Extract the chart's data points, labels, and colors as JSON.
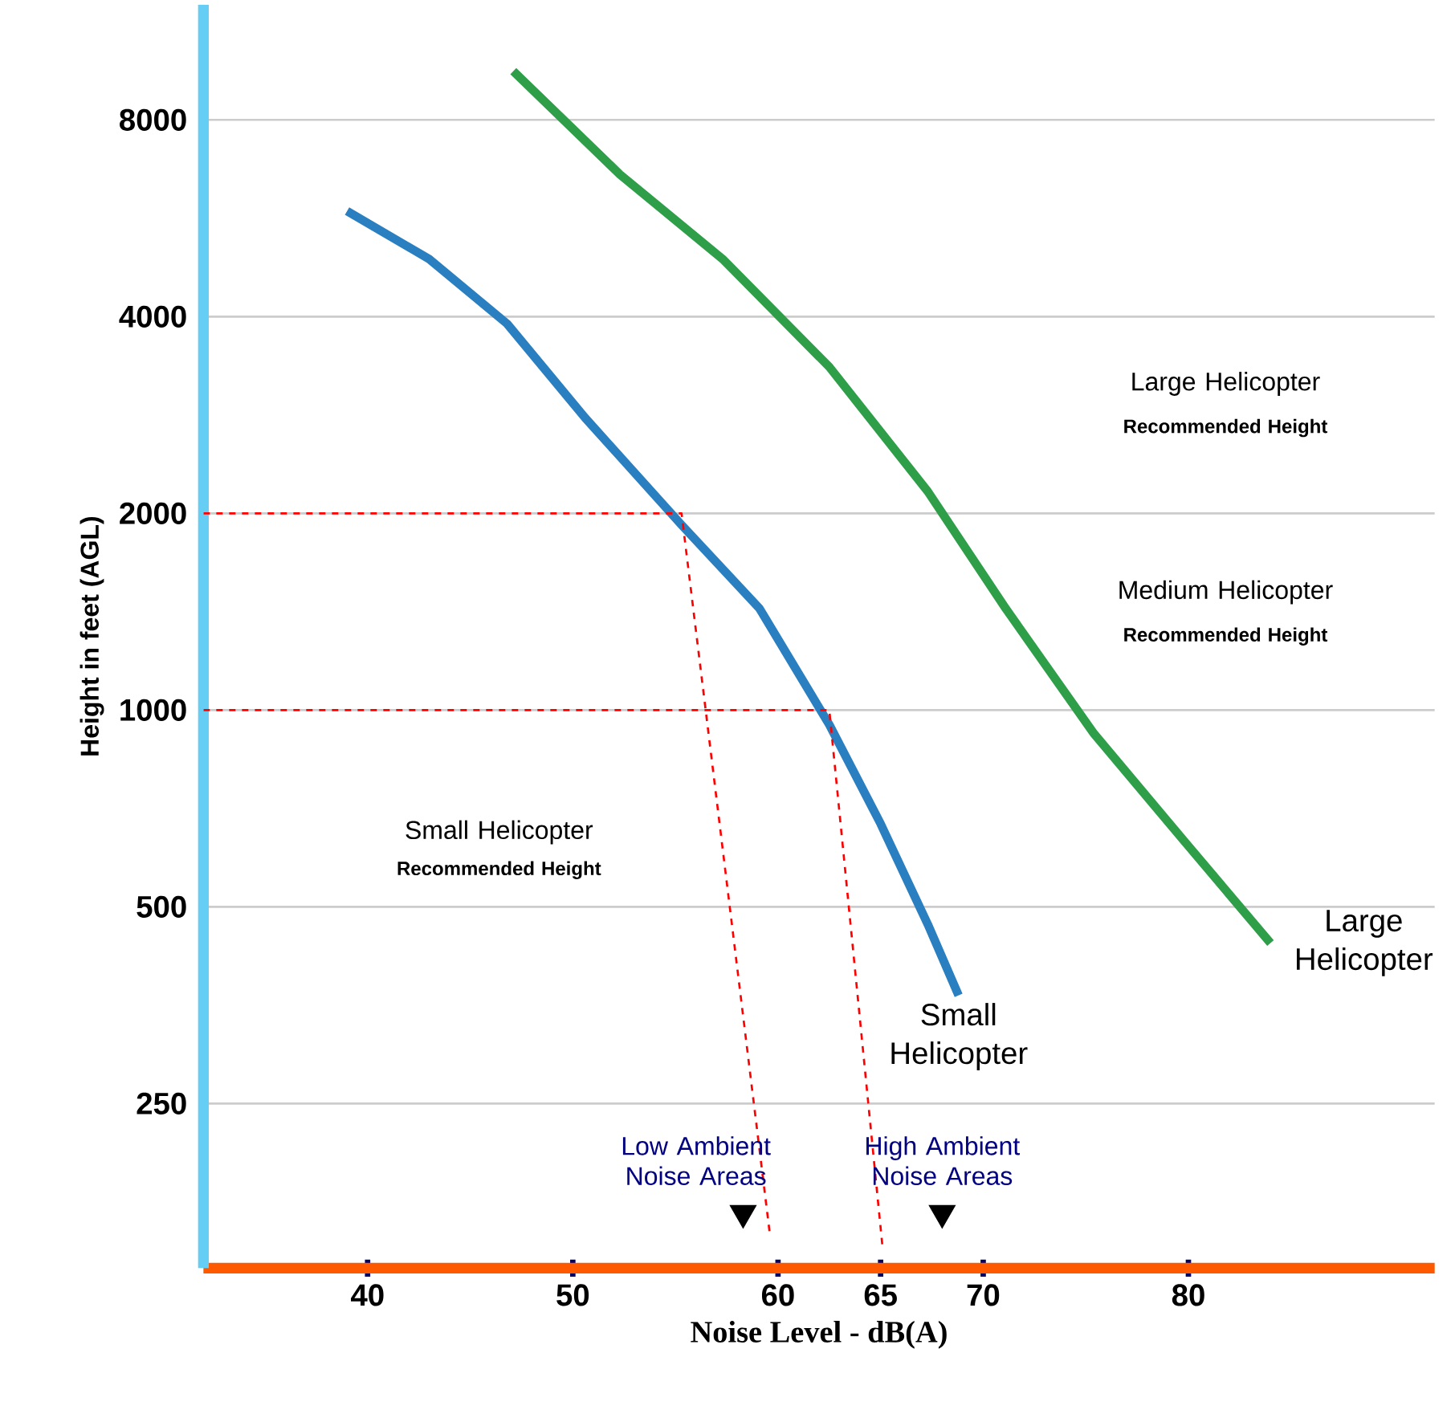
{
  "chart_data": {
    "type": "line",
    "xlabel": "Noise Level - dB(A)",
    "ylabel": "Height in feet (AGL)",
    "log": "y",
    "xlim": [
      32,
      92
    ],
    "ylim": [
      140,
      12000
    ],
    "xticks": [
      40,
      50,
      60,
      65,
      70,
      80
    ],
    "yticks": [
      250,
      500,
      1000,
      2000,
      4000,
      8000
    ],
    "grid": "y",
    "marker": "none",
    "line_style": "solid",
    "series": [
      {
        "name": "Small Helicopter",
        "color": "#2a7fc0",
        "x": [
          39.0,
          43.0,
          46.8,
          50.6,
          55.3,
          59.1,
          62.5,
          65.0,
          67.3,
          68.8
        ],
        "values": [
          5800,
          4900,
          3900,
          2800,
          1920,
          1430,
          950,
          670,
          470,
          366
        ]
      },
      {
        "name": "Large Helicopter",
        "color": "#2e9e48",
        "x": [
          47.1,
          52.3,
          57.3,
          62.5,
          67.3,
          71.1,
          75.4,
          79.8,
          84.0
        ],
        "values": [
          9500,
          6600,
          4900,
          3350,
          2160,
          1430,
          920,
          630,
          440
        ]
      },
      {
        "color": "#ff0000",
        "line_style": "dashed",
        "x": [
          32,
          55.3,
          59.6
        ],
        "values": [
          2000,
          2000,
          158
        ]
      },
      {
        "color": "#ff0000",
        "line_style": "dashed",
        "x": [
          32,
          62.5,
          65.1
        ],
        "values": [
          1000,
          1000,
          150
        ]
      },
      {
        "type": "scatter",
        "marker": "triangle",
        "color": "#000000",
        "x": [
          58.3,
          68.0
        ],
        "values": [
          170,
          170
        ]
      }
    ],
    "annotations": [
      "Large Helicopter",
      "**Recommended Height**",
      "Medium Helicopter",
      "**Recommended Height**",
      "Small Helicopter",
      "**Recommended Height**",
      "Low Ambient Noise Areas",
      "High Ambient Noise Areas"
    ]
  }
}
